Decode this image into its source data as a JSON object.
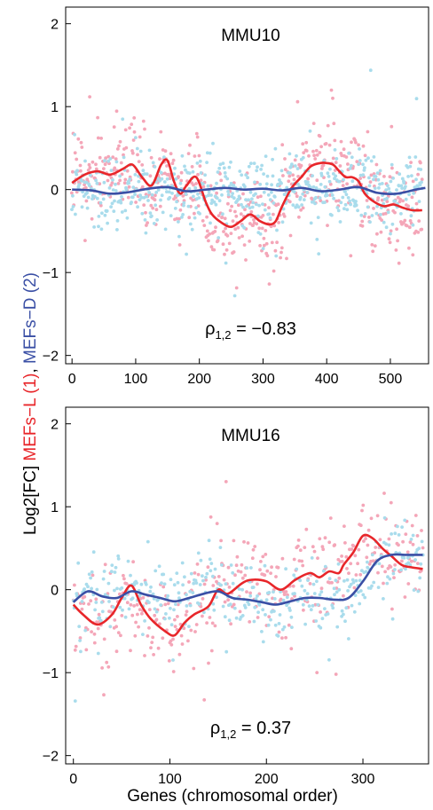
{
  "ylabel": {
    "prefix": "Log2[FC] ",
    "series1": "MEFs−L (1)",
    "sep": ", ",
    "series2": "MEFs−D (2)"
  },
  "xlabel": "Genes (chromosomal order)",
  "colors": {
    "series1_line": "#e8262a",
    "series2_line": "#3a4fa5",
    "series1_points": "#f4a6b8",
    "series2_points": "#a9dcec"
  },
  "chart_data": [
    {
      "type": "scatter",
      "title": "MMU10",
      "annotation": {
        "symbol": "ρ",
        "subscript": "1,2",
        "text": " = −0.83"
      },
      "xlim": [
        -10,
        560
      ],
      "ylim": [
        -2.1,
        2.2
      ],
      "xticks": [
        0,
        100,
        200,
        300,
        400,
        500
      ],
      "yticks": [
        -2,
        -1,
        0,
        1,
        2
      ],
      "n_points": 560,
      "series": [
        {
          "name": "MEFs−L (1)",
          "role": "series1",
          "smooth_x": [
            0,
            20,
            40,
            60,
            80,
            95,
            110,
            125,
            140,
            150,
            160,
            170,
            180,
            195,
            210,
            220,
            235,
            250,
            265,
            280,
            295,
            310,
            320,
            330,
            345,
            360,
            375,
            390,
            400,
            410,
            420,
            430,
            440,
            450,
            460,
            475,
            490,
            505,
            520,
            535,
            550
          ],
          "smooth_y": [
            0.08,
            0.18,
            0.22,
            0.18,
            0.25,
            0.3,
            0.15,
            0.05,
            0.3,
            0.35,
            0.1,
            -0.05,
            0.05,
            0.15,
            -0.15,
            -0.3,
            -0.4,
            -0.45,
            -0.38,
            -0.3,
            -0.38,
            -0.42,
            -0.38,
            -0.2,
            0.02,
            0.15,
            0.28,
            0.32,
            0.32,
            0.3,
            0.22,
            0.15,
            0.15,
            0.1,
            -0.05,
            -0.15,
            -0.2,
            -0.18,
            -0.22,
            -0.25,
            -0.25
          ]
        },
        {
          "name": "MEFs−D (2)",
          "role": "series2",
          "smooth_x": [
            0,
            30,
            60,
            90,
            120,
            150,
            180,
            210,
            240,
            270,
            300,
            330,
            360,
            390,
            420,
            450,
            480,
            510,
            540,
            555
          ],
          "smooth_y": [
            0.0,
            -0.01,
            -0.05,
            -0.03,
            0.01,
            0.03,
            -0.02,
            0.0,
            0.02,
            0.0,
            0.01,
            -0.01,
            0.02,
            -0.02,
            0.0,
            0.03,
            -0.04,
            -0.05,
            0.0,
            0.02
          ]
        }
      ]
    },
    {
      "type": "scatter",
      "title": "MMU16",
      "annotation": {
        "symbol": "ρ",
        "subscript": "1,2",
        "text": " = 0.37"
      },
      "xlim": [
        -8,
        368
      ],
      "ylim": [
        -2.1,
        2.2
      ],
      "xticks": [
        0,
        100,
        200,
        300
      ],
      "yticks": [
        -2,
        -1,
        0,
        1,
        2
      ],
      "n_points": 370,
      "series": [
        {
          "name": "MEFs−L (1)",
          "role": "series1",
          "smooth_x": [
            0,
            10,
            25,
            40,
            50,
            60,
            70,
            80,
            95,
            105,
            115,
            125,
            140,
            150,
            160,
            175,
            185,
            200,
            215,
            230,
            245,
            255,
            265,
            275,
            280,
            290,
            300,
            310,
            320,
            330,
            340,
            350,
            362
          ],
          "smooth_y": [
            -0.18,
            -0.3,
            -0.42,
            -0.3,
            -0.1,
            0.05,
            -0.18,
            -0.35,
            -0.5,
            -0.55,
            -0.4,
            -0.3,
            -0.2,
            0.0,
            -0.05,
            0.08,
            0.12,
            0.1,
            0.0,
            0.12,
            0.2,
            0.15,
            0.22,
            0.2,
            0.3,
            0.45,
            0.65,
            0.62,
            0.5,
            0.4,
            0.3,
            0.27,
            0.25
          ]
        },
        {
          "name": "MEFs−D (2)",
          "role": "series2",
          "smooth_x": [
            0,
            15,
            30,
            45,
            60,
            75,
            90,
            105,
            120,
            135,
            150,
            165,
            180,
            195,
            210,
            225,
            240,
            255,
            270,
            285,
            300,
            315,
            330,
            345,
            362
          ],
          "smooth_y": [
            -0.15,
            -0.02,
            -0.08,
            -0.1,
            -0.02,
            -0.06,
            -0.1,
            -0.14,
            -0.1,
            -0.05,
            -0.02,
            -0.1,
            -0.12,
            -0.15,
            -0.18,
            -0.14,
            -0.1,
            -0.1,
            -0.12,
            -0.1,
            0.1,
            0.35,
            0.42,
            0.42,
            0.42
          ]
        }
      ]
    }
  ]
}
